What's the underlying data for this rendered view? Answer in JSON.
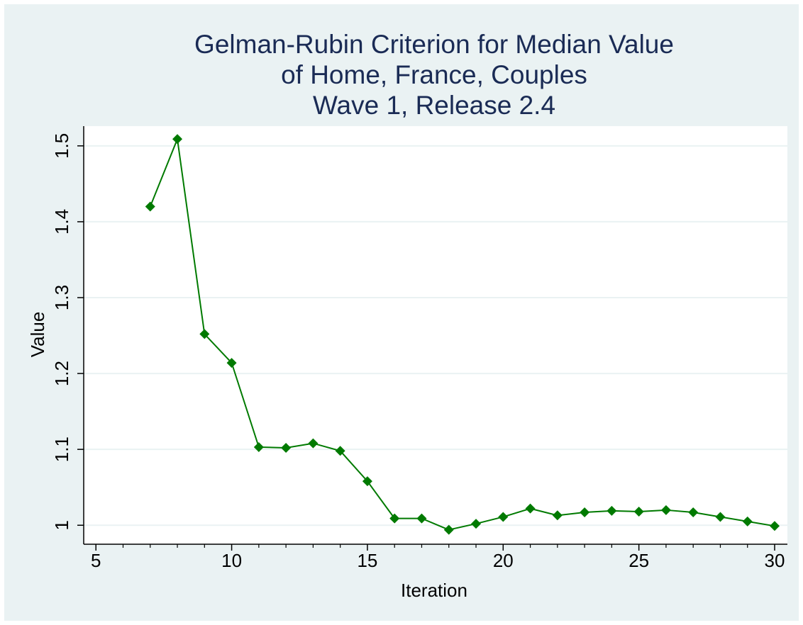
{
  "chart_data": {
    "type": "line",
    "title": [
      "Gelman-Rubin Criterion for Median Value",
      "of Home, France, Couples",
      "Wave 1, Release 2.4"
    ],
    "x_label": "Iteration",
    "y_label": "Value",
    "x": [
      7,
      8,
      9,
      10,
      11,
      12,
      13,
      14,
      15,
      16,
      17,
      18,
      19,
      20,
      21,
      22,
      23,
      24,
      25,
      26,
      27,
      28,
      29,
      30
    ],
    "series": [
      {
        "color": "#007a00",
        "values": [
          1.42,
          1.509,
          1.252,
          1.214,
          1.103,
          1.102,
          1.108,
          1.098,
          1.058,
          1.009,
          1.009,
          0.994,
          1.002,
          1.011,
          1.022,
          1.013,
          1.017,
          1.019,
          1.018,
          1.02,
          1.017,
          1.011,
          1.005,
          0.999
        ]
      }
    ],
    "xlim": [
      4.55,
      30.47
    ],
    "ylim": [
      0.975,
      1.526
    ],
    "xticks": [
      5,
      10,
      15,
      20,
      25,
      30
    ],
    "xminorticks": [
      6,
      7,
      8,
      9,
      11,
      12,
      13,
      14,
      16,
      17,
      18,
      19,
      21,
      22,
      23,
      24,
      26,
      27,
      28,
      29
    ],
    "yticks": [
      1,
      1.1,
      1.2,
      1.3,
      1.4,
      1.5
    ],
    "grid": true
  }
}
